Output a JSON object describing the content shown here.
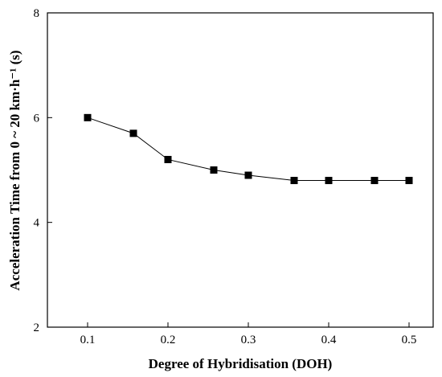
{
  "chart_data": {
    "type": "line",
    "title": "",
    "xlabel": "Degree of Hybridisation (DOH)",
    "ylabel": "Acceleration Time from 0 ~ 20 km·h⁻¹ (s)",
    "xlim": [
      0.05,
      0.53
    ],
    "ylim": [
      2,
      8
    ],
    "x_ticks": [
      "0.1",
      "0.2",
      "0.3",
      "0.4",
      "0.5"
    ],
    "y_ticks": [
      "2",
      "4",
      "6",
      "8"
    ],
    "grid": false,
    "series": [
      {
        "marker": "square",
        "color": "#000000",
        "x": [
          0.1,
          0.157,
          0.2,
          0.257,
          0.3,
          0.357,
          0.4,
          0.457,
          0.5
        ],
        "y": [
          6.0,
          5.7,
          5.2,
          5.0,
          4.9,
          4.8,
          4.8,
          4.8,
          4.8
        ]
      }
    ]
  }
}
